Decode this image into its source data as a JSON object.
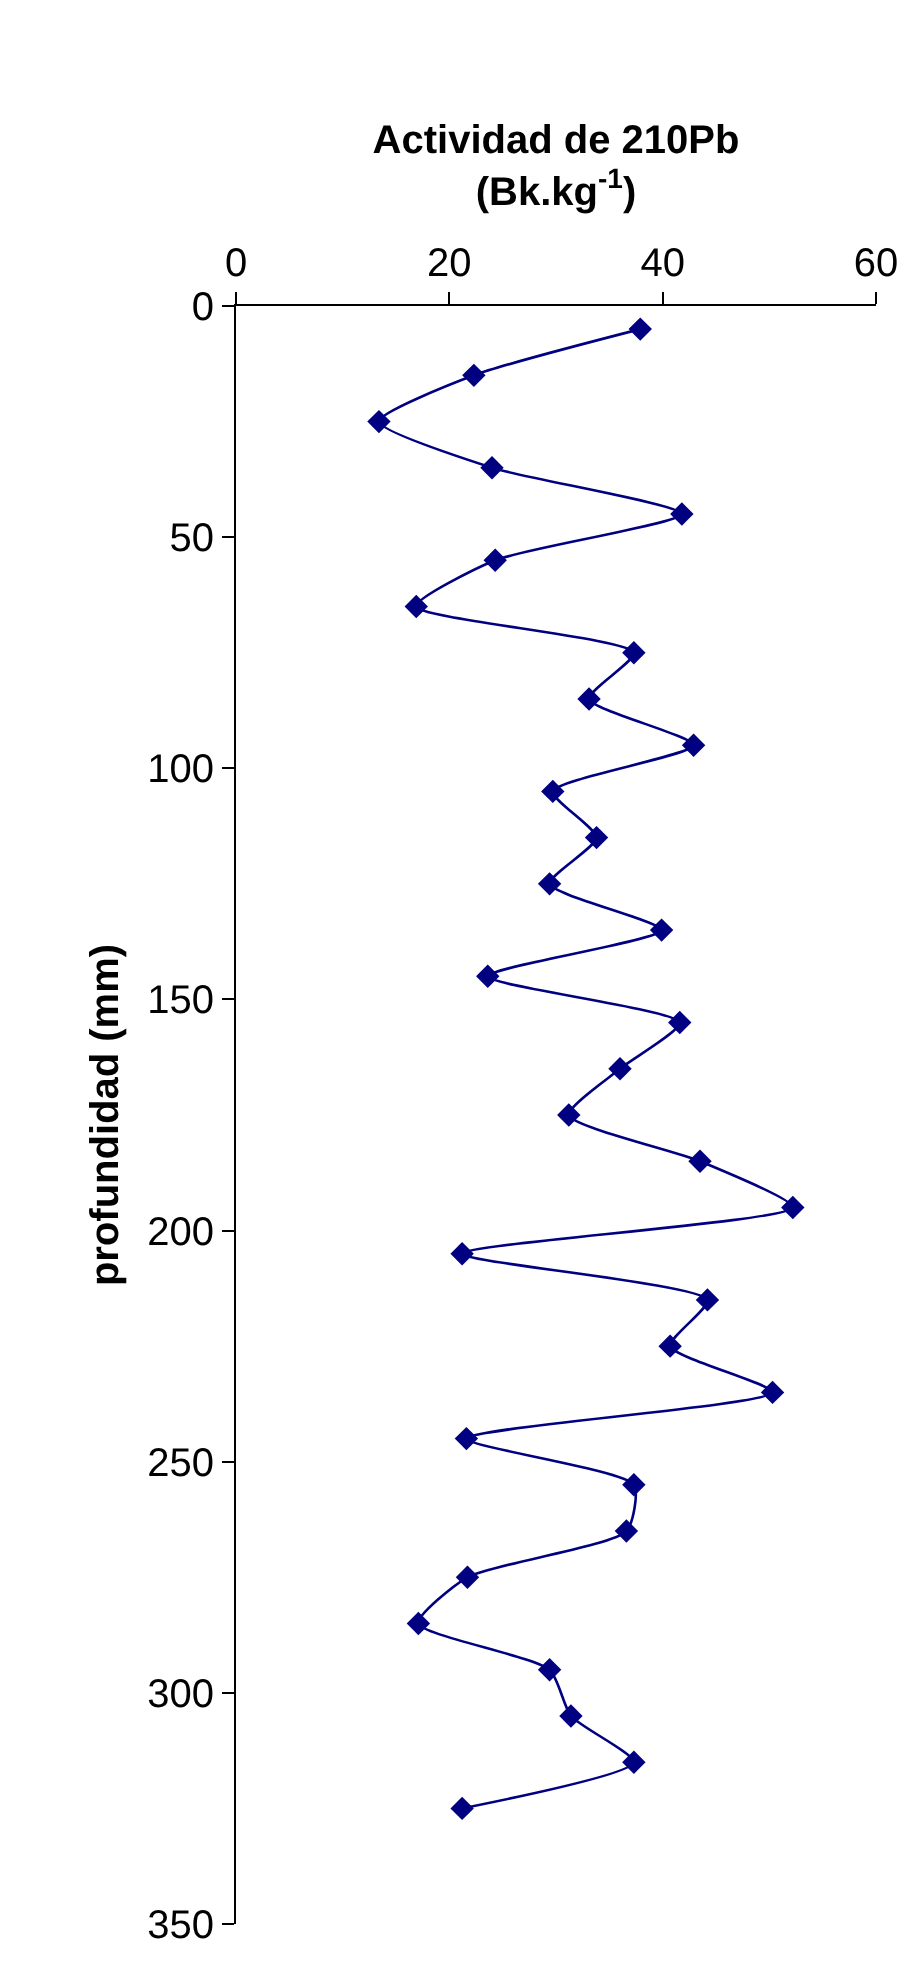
{
  "chart_data": {
    "type": "line",
    "xlabel": "Actividad de 210Pb\n(Bk.kg$^{-1}$)",
    "ylabel": "profundidad (mm)",
    "xlim": [
      0,
      60
    ],
    "xticks": [
      0,
      20,
      40,
      60
    ],
    "ylim": [
      350,
      0
    ],
    "yticks": [
      0,
      50,
      100,
      150,
      200,
      250,
      300,
      350
    ],
    "legend": false,
    "marker": "diamond",
    "line_style": "solid",
    "series": [
      {
        "color": "#000080",
        "x": [
          37.9,
          22.3,
          13.4,
          24.0,
          41.8,
          24.3,
          16.9,
          37.3,
          33.1,
          42.9,
          29.7,
          33.8,
          29.4,
          39.9,
          23.6,
          41.6,
          36.0,
          31.2,
          43.5,
          52.2,
          21.2,
          44.2,
          40.7,
          50.3,
          21.6,
          37.3,
          36.6,
          21.7,
          17.1,
          29.4,
          31.4,
          37.3,
          21.2
        ],
        "values": [
          5,
          15,
          25,
          35,
          45,
          55,
          65,
          75,
          85,
          95,
          105,
          115,
          125,
          135,
          145,
          155,
          165,
          175,
          185,
          195,
          205,
          215,
          225,
          235,
          245,
          255,
          265,
          275,
          285,
          295,
          305,
          315,
          325
        ]
      }
    ]
  }
}
